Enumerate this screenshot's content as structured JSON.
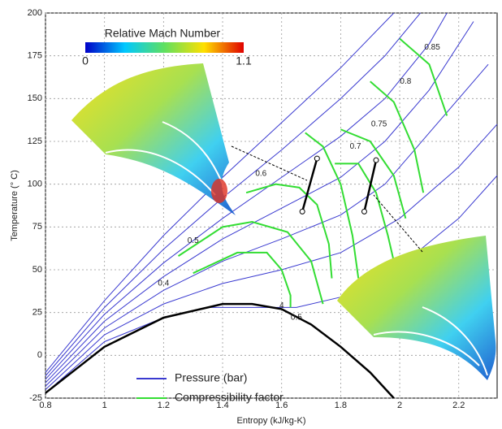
{
  "chart_data": {
    "type": "line",
    "x_label": "Entropy (kJ/kg-K)",
    "y_label": "Temperature (° C)",
    "xlim": [
      0.8,
      2.33
    ],
    "ylim": [
      -25,
      200
    ],
    "xticks": [
      0.8,
      1,
      1.2,
      1.4,
      1.6,
      1.8,
      2,
      2.2
    ],
    "yticks": [
      -25,
      0,
      25,
      50,
      75,
      100,
      125,
      150,
      175,
      200
    ],
    "grid": true,
    "colorbar": {
      "title": "Relative Mach Number",
      "ticks": [
        0,
        1.1
      ]
    },
    "series": [
      {
        "name": "Pressure (bar)",
        "color": "#3a3ad0",
        "lines": [
          {
            "x": [
              0.8,
              1.0,
              1.2,
              1.35,
              1.65,
              1.8,
              2.0,
              2.2,
              2.33
            ],
            "values": [
              -22,
              8,
              22,
              28,
              28,
              34,
              52,
              80,
              105
            ]
          },
          {
            "x": [
              0.8,
              1.0,
              1.2,
              1.4,
              1.6,
              1.8,
              2.0,
              2.2,
              2.33
            ],
            "values": [
              -20,
              12,
              30,
              42,
              50,
              60,
              80,
              110,
              135
            ]
          },
          {
            "x": [
              0.8,
              1.0,
              1.2,
              1.4,
              1.6,
              1.8,
              1.95,
              2.1,
              2.3
            ],
            "values": [
              -18,
              16,
              38,
              55,
              68,
              82,
              100,
              130,
              170
            ]
          },
          {
            "x": [
              0.8,
              1.0,
              1.2,
              1.4,
              1.6,
              1.8,
              1.95,
              2.1,
              2.25
            ],
            "values": [
              -16,
              20,
              46,
              68,
              86,
              104,
              125,
              155,
              195
            ]
          },
          {
            "x": [
              0.8,
              1.0,
              1.2,
              1.4,
              1.6,
              1.8,
              1.95,
              2.1,
              2.16
            ],
            "values": [
              -14,
              24,
              54,
              80,
              104,
              128,
              150,
              182,
              200
            ]
          },
          {
            "x": [
              0.8,
              1.0,
              1.2,
              1.4,
              1.6,
              1.8,
              1.95,
              2.07
            ],
            "values": [
              -12,
              28,
              62,
              92,
              120,
              150,
              175,
              200
            ]
          },
          {
            "x": [
              0.8,
              1.0,
              1.2,
              1.4,
              1.6,
              1.8,
              1.98
            ],
            "values": [
              -10,
              32,
              70,
              104,
              136,
              168,
              200
            ]
          }
        ]
      },
      {
        "name": "Compressibility factor",
        "color": "#33dd33",
        "lines": [
          {
            "x": [
              1.3,
              1.45,
              1.55,
              1.6,
              1.63,
              1.63
            ],
            "values": [
              48,
              60,
              60,
              50,
              35,
              28
            ]
          },
          {
            "x": [
              1.25,
              1.4,
              1.5,
              1.62,
              1.7,
              1.74
            ],
            "values": [
              58,
              75,
              78,
              72,
              55,
              30
            ]
          },
          {
            "x": [
              1.48,
              1.58,
              1.66,
              1.72,
              1.76,
              1.77
            ],
            "values": [
              95,
              100,
              98,
              88,
              65,
              45
            ]
          },
          {
            "x": [
              1.68,
              1.74,
              1.8,
              1.84,
              1.86
            ],
            "values": [
              130,
              122,
              100,
              70,
              45
            ]
          },
          {
            "x": [
              1.78,
              1.86,
              1.92,
              1.96,
              1.98
            ],
            "values": [
              112,
              112,
              95,
              70,
              55
            ]
          },
          {
            "x": [
              1.8,
              1.9,
              1.98,
              2.02
            ],
            "values": [
              132,
              125,
              105,
              80
            ]
          },
          {
            "x": [
              1.9,
              1.98,
              2.05,
              2.08
            ],
            "values": [
              160,
              148,
              120,
              95
            ]
          },
          {
            "x": [
              2.0,
              2.1,
              2.16
            ],
            "values": [
              185,
              170,
              140
            ]
          }
        ]
      }
    ],
    "saturation_dome": {
      "color": "#000000",
      "x": [
        0.8,
        1.0,
        1.2,
        1.4,
        1.5,
        1.6,
        1.7,
        1.8,
        1.9,
        1.98
      ],
      "values": [
        -22,
        5,
        22,
        30,
        30,
        27,
        18,
        5,
        -10,
        -25
      ]
    },
    "process_lines": {
      "color": "#000000",
      "lines": [
        {
          "x": [
            1.67,
            1.72
          ],
          "values": [
            84,
            115
          ]
        },
        {
          "x": [
            1.88,
            1.92
          ],
          "values": [
            84,
            114
          ]
        }
      ]
    },
    "annotations": [
      {
        "text": "0.85",
        "x": 2.11,
        "y": 180
      },
      {
        "text": "0.8",
        "x": 2.02,
        "y": 160
      },
      {
        "text": "0.75",
        "x": 1.93,
        "y": 135
      },
      {
        "text": "0.7",
        "x": 1.85,
        "y": 122
      },
      {
        "text": "0.6",
        "x": 1.53,
        "y": 106
      },
      {
        "text": "0.5",
        "x": 1.3,
        "y": 67
      },
      {
        "text": "0.4",
        "x": 1.2,
        "y": 42
      },
      {
        "text": "0.5",
        "x": 1.65,
        "y": 22
      },
      {
        "text": "4",
        "x": 1.6,
        "y": 29
      }
    ]
  }
}
